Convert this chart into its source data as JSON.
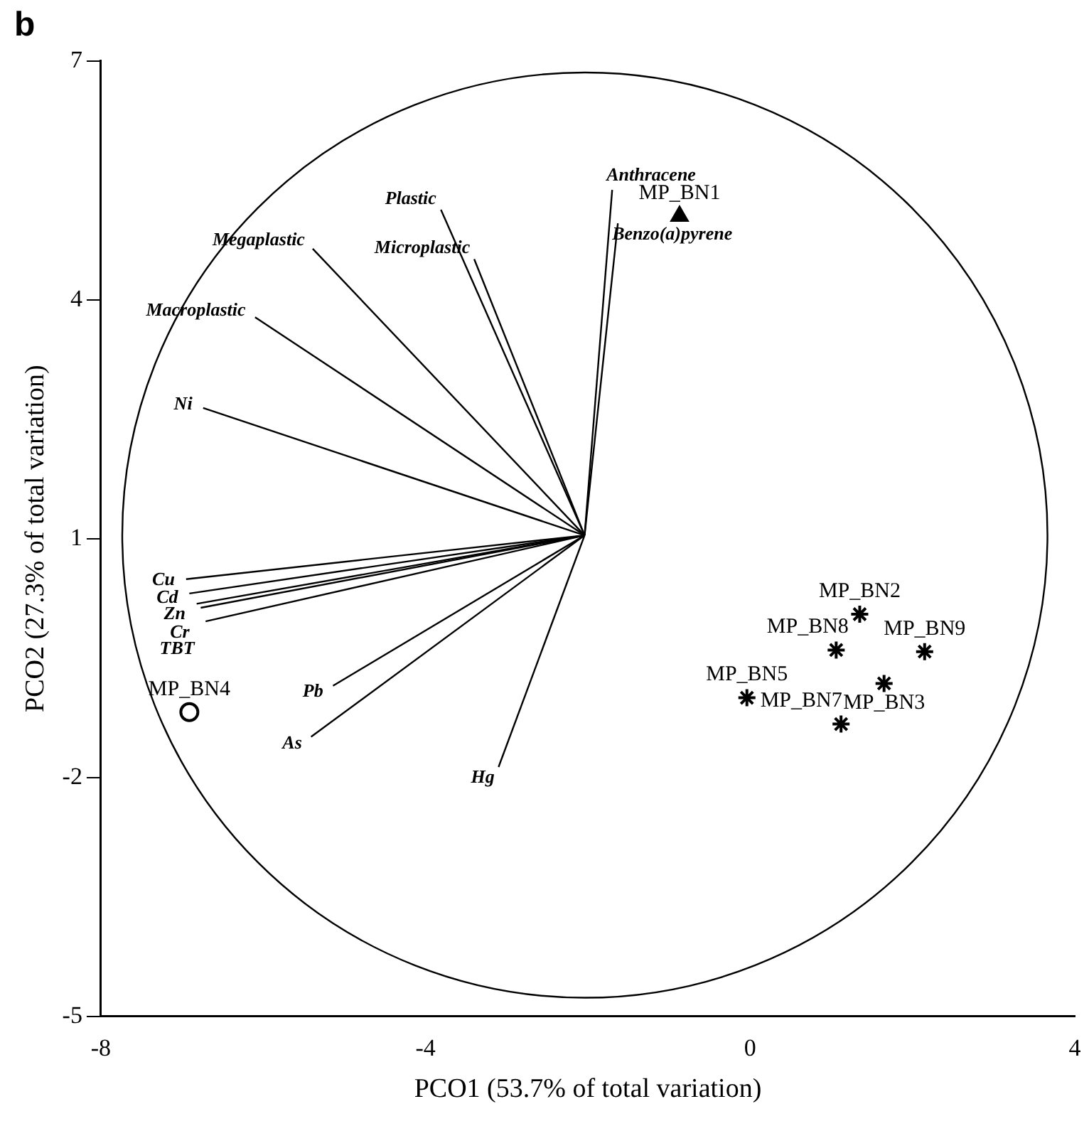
{
  "chart_data": {
    "type": "scatter",
    "title": "b",
    "xlabel": "PCO1 (53.7% of total variation)",
    "ylabel": "PCO2 (27.3% of total variation)",
    "xlim": [
      -8,
      4
    ],
    "xticks": [
      -8,
      -4,
      0,
      4
    ],
    "ylim": [
      -5,
      7
    ],
    "yticks": [
      -5,
      -2,
      1,
      4,
      7
    ],
    "grid": false,
    "legend": false,
    "series": [
      {
        "type": "line",
        "name": "Anthracene",
        "color": "#000000",
        "x": [
          -2.04,
          -1.7
        ],
        "values": [
          1.04,
          5.38
        ]
      },
      {
        "type": "line",
        "name": "Benzo(a)pyrene",
        "color": "#000000",
        "x": [
          -2.04,
          -1.63
        ],
        "values": [
          1.04,
          4.96
        ]
      },
      {
        "type": "line",
        "name": "Plastic",
        "color": "#000000",
        "x": [
          -2.04,
          -3.81
        ],
        "values": [
          1.04,
          5.13
        ]
      },
      {
        "type": "line",
        "name": "Microplastic",
        "color": "#000000",
        "x": [
          -2.04,
          -3.4
        ],
        "values": [
          1.04,
          4.51
        ]
      },
      {
        "type": "line",
        "name": "Megaplastic",
        "color": "#000000",
        "x": [
          -2.04,
          -5.39
        ],
        "values": [
          1.04,
          4.64
        ]
      },
      {
        "type": "line",
        "name": "Macroplastic",
        "color": "#000000",
        "x": [
          -2.04,
          -6.1
        ],
        "values": [
          1.04,
          3.78
        ]
      },
      {
        "type": "line",
        "name": "Ni",
        "color": "#000000",
        "x": [
          -2.04,
          -6.74
        ],
        "values": [
          1.04,
          2.64
        ]
      },
      {
        "type": "line",
        "name": "Cu",
        "color": "#000000",
        "x": [
          -2.04,
          -6.95
        ],
        "values": [
          1.04,
          0.49
        ]
      },
      {
        "type": "line",
        "name": "Cd",
        "color": "#000000",
        "x": [
          -2.04,
          -6.91
        ],
        "values": [
          1.04,
          0.31
        ]
      },
      {
        "type": "line",
        "name": "Zn",
        "color": "#000000",
        "x": [
          -2.04,
          -6.82
        ],
        "values": [
          1.04,
          0.18
        ]
      },
      {
        "type": "line",
        "name": "Cr",
        "color": "#000000",
        "x": [
          -2.04,
          -6.77
        ],
        "values": [
          1.04,
          0.13
        ]
      },
      {
        "type": "line",
        "name": "TBT",
        "color": "#000000",
        "x": [
          -2.04,
          -6.71
        ],
        "values": [
          1.04,
          -0.04
        ]
      },
      {
        "type": "line",
        "name": "Pb",
        "color": "#000000",
        "x": [
          -2.04,
          -5.14
        ],
        "values": [
          1.04,
          -0.85
        ]
      },
      {
        "type": "line",
        "name": "As",
        "color": "#000000",
        "x": [
          -2.04,
          -5.41
        ],
        "values": [
          1.04,
          -1.49
        ]
      },
      {
        "type": "line",
        "name": "Hg",
        "color": "#000000",
        "x": [
          -2.04,
          -3.1
        ],
        "values": [
          1.04,
          -1.87
        ]
      },
      {
        "type": "scatter",
        "name": "MP_BN1",
        "color": "#000000",
        "marker": "triangle",
        "x": [
          -0.87
        ],
        "values": [
          5.05
        ]
      },
      {
        "type": "scatter",
        "name": "MP_BN4",
        "color": "#000000",
        "marker": "circle",
        "x": [
          -6.91
        ],
        "values": [
          -1.18
        ]
      },
      {
        "type": "scatter",
        "name": "MP_BN2",
        "color": "#000000",
        "marker": "cross",
        "x": [
          1.35
        ],
        "values": [
          0.05
        ]
      },
      {
        "type": "scatter",
        "name": "MP_BN8",
        "color": "#000000",
        "marker": "cross",
        "x": [
          1.06
        ],
        "values": [
          -0.4
        ]
      },
      {
        "type": "scatter",
        "name": "MP_BN9",
        "color": "#000000",
        "marker": "cross",
        "x": [
          2.15
        ],
        "values": [
          -0.42
        ]
      },
      {
        "type": "scatter",
        "name": "MP_BN3",
        "color": "#000000",
        "marker": "cross",
        "x": [
          1.65
        ],
        "values": [
          -0.82
        ]
      },
      {
        "type": "scatter",
        "name": "MP_BN5",
        "color": "#000000",
        "marker": "cross",
        "x": [
          -0.04
        ],
        "values": [
          -1.0
        ]
      },
      {
        "type": "scatter",
        "name": "MP_BN7",
        "color": "#000000",
        "marker": "cross",
        "x": [
          1.12
        ],
        "values": [
          -1.33
        ]
      }
    ]
  }
}
